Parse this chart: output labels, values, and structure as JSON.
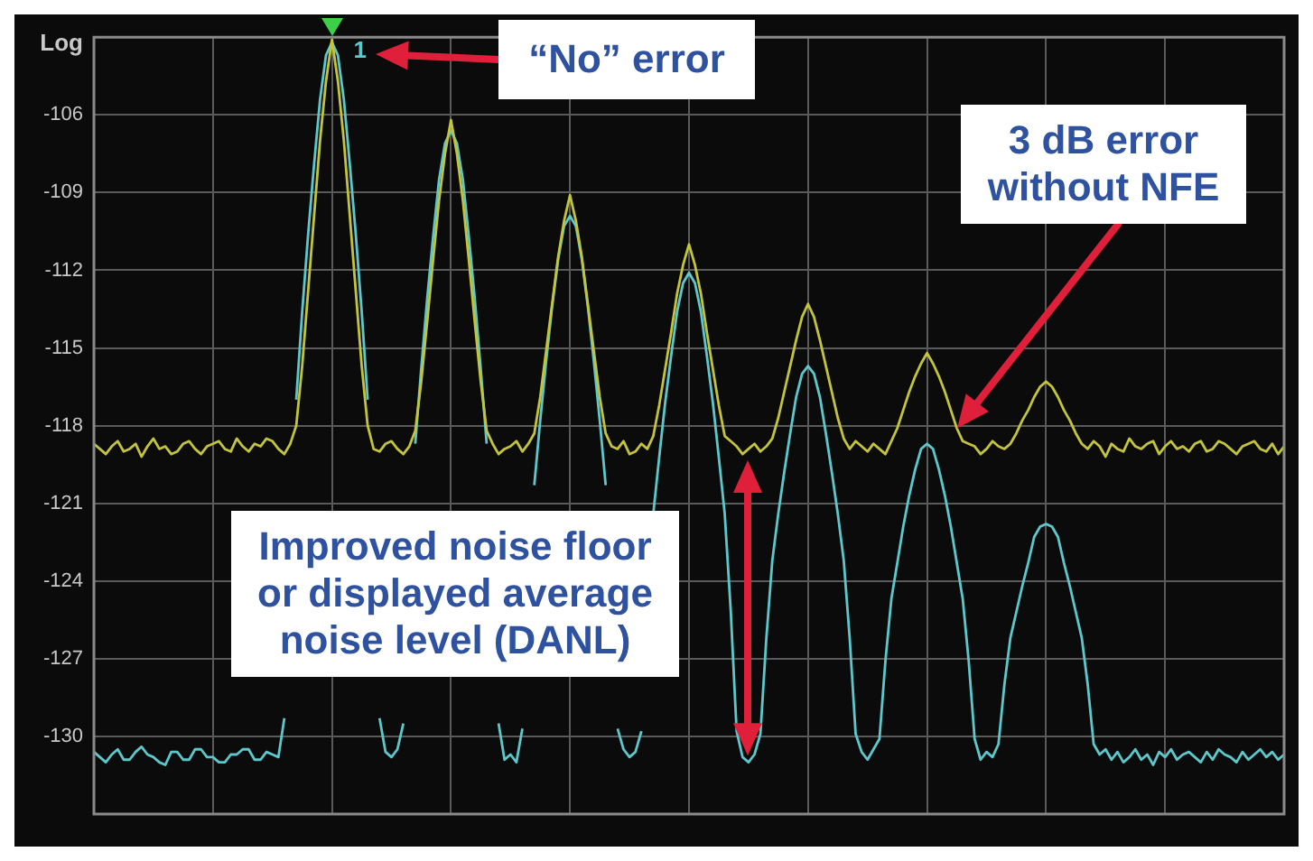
{
  "chart_data": {
    "type": "line",
    "ylabel": "Log",
    "categories": [
      null,
      null,
      null,
      null,
      null,
      null,
      null,
      null,
      null,
      null,
      null,
      null,
      null,
      null,
      null,
      null,
      null,
      null,
      null,
      null,
      null,
      null,
      null,
      null,
      null,
      null,
      null,
      null,
      null,
      null,
      null,
      null,
      null,
      null,
      null,
      null,
      null,
      null,
      null,
      null,
      null,
      null,
      null,
      null,
      null,
      null,
      null,
      null,
      null,
      null,
      null,
      null,
      null,
      null,
      null,
      null,
      null,
      null,
      null,
      null,
      null,
      null,
      null,
      null,
      null,
      null,
      null,
      null,
      null,
      null,
      null,
      null,
      null,
      null,
      null,
      null,
      null,
      null,
      null,
      null,
      null,
      null,
      null,
      null,
      null,
      null,
      null,
      null,
      null,
      null,
      null,
      null,
      null,
      null,
      null,
      null,
      null,
      null,
      null,
      null,
      null,
      null,
      null,
      null,
      null,
      null,
      null,
      null,
      null,
      null,
      null,
      null,
      null,
      null,
      null,
      null,
      null,
      null,
      null,
      null,
      null,
      null,
      null,
      null,
      null,
      null,
      null,
      null,
      null,
      null,
      null,
      null,
      null,
      null,
      null,
      null,
      null,
      null,
      null,
      null,
      null,
      null,
      null,
      null,
      null,
      null,
      null,
      null,
      null,
      null,
      null,
      null,
      null,
      null,
      null,
      null,
      null,
      null,
      null,
      null,
      null,
      null,
      null,
      null,
      null,
      null,
      null,
      null,
      null,
      null,
      null,
      null,
      null,
      null,
      null,
      null,
      null,
      null,
      null,
      null,
      null,
      null,
      null,
      null,
      null,
      null,
      null,
      null,
      null,
      null,
      null,
      null,
      null,
      null,
      null,
      null,
      null,
      null,
      null,
      null,
      null
    ],
    "ylim": [
      -133,
      -103
    ],
    "yticks": [
      {
        "value": -103,
        "label": null
      },
      -106,
      -109,
      -112,
      -115,
      -118,
      -121,
      -124,
      -127,
      -130,
      {
        "value": -133,
        "label": null
      }
    ],
    "tick_labels": "y",
    "grid": true,
    "legend": false,
    "marker": "none",
    "series": [
      {
        "color": "#c4c43c",
        "values": [
          -118.7,
          -118.9,
          -119.1,
          -118.8,
          -118.6,
          -119.0,
          -118.9,
          -118.7,
          -119.2,
          -118.8,
          -118.5,
          -118.9,
          -118.8,
          -119.1,
          -119.0,
          -118.7,
          -118.6,
          -118.9,
          -119.1,
          -118.8,
          -118.7,
          -118.6,
          -118.9,
          -119.0,
          -118.5,
          -118.8,
          -119.0,
          -118.7,
          -118.8,
          -118.5,
          -118.6,
          -118.9,
          -119.1,
          -118.7,
          -118.0,
          -115.7,
          -112.8,
          -109.9,
          -107.0,
          -104.7,
          -103.1,
          -104.7,
          -107.0,
          -109.9,
          -112.8,
          -115.7,
          -118.0,
          -118.9,
          -119.0,
          -118.7,
          -118.6,
          -118.9,
          -119.1,
          -118.8,
          -118.2,
          -116.3,
          -114.0,
          -111.6,
          -109.3,
          -107.5,
          -106.2,
          -107.5,
          -109.3,
          -111.6,
          -114.0,
          -116.3,
          -118.2,
          -118.7,
          -119.1,
          -118.9,
          -118.8,
          -118.6,
          -119.0,
          -118.7,
          -118.3,
          -116.9,
          -115.1,
          -113.3,
          -111.5,
          -110.1,
          -109.1,
          -110.1,
          -111.5,
          -113.3,
          -115.1,
          -116.9,
          -118.3,
          -118.8,
          -118.9,
          -118.6,
          -119.1,
          -119.0,
          -118.7,
          -118.9,
          -118.4,
          -117.2,
          -115.8,
          -114.4,
          -112.9,
          -111.8,
          -111.0,
          -111.8,
          -112.9,
          -114.4,
          -115.8,
          -117.2,
          -118.4,
          -118.6,
          -118.8,
          -119.1,
          -118.9,
          -118.7,
          -119.0,
          -118.8,
          -118.5,
          -117.7,
          -116.7,
          -115.7,
          -114.7,
          -113.8,
          -113.3,
          -113.8,
          -114.7,
          -115.7,
          -116.7,
          -117.7,
          -118.5,
          -118.9,
          -118.6,
          -118.8,
          -119.0,
          -118.7,
          -118.9,
          -119.1,
          -118.6,
          -118.1,
          -117.4,
          -116.7,
          -116.1,
          -115.6,
          -115.2,
          -115.6,
          -116.1,
          -116.7,
          -117.4,
          -118.1,
          -118.6,
          -118.7,
          -118.8,
          -119.1,
          -118.9,
          -118.6,
          -118.8,
          -118.9,
          -118.7,
          -118.3,
          -117.8,
          -117.4,
          -116.9,
          -116.5,
          -116.3,
          -116.5,
          -116.9,
          -117.4,
          -117.8,
          -118.3,
          -118.7,
          -118.9,
          -118.6,
          -118.8,
          -119.2,
          -118.7,
          -118.9,
          -119.0,
          -118.5,
          -118.8,
          -118.9,
          -118.7,
          -118.6,
          -119.1,
          -118.8,
          -118.6,
          -118.9,
          -118.8,
          -119.0,
          -118.7,
          -118.6,
          -119.0,
          -118.9,
          -118.6,
          -118.7,
          -118.9,
          -119.1,
          -118.8,
          -118.7,
          -118.6,
          -118.9,
          -119.0,
          -118.7,
          -119.1,
          -118.8
        ]
      },
      {
        "color": "#5cc8cc",
        "values": [
          -130.6,
          -130.8,
          -131.0,
          -130.7,
          -130.5,
          -130.9,
          -130.9,
          -130.6,
          -130.4,
          -130.7,
          -130.8,
          -131.0,
          -131.1,
          -130.6,
          -130.6,
          -130.9,
          -130.9,
          -130.5,
          -130.5,
          -130.8,
          -130.8,
          -131.0,
          -131.0,
          -130.7,
          -130.7,
          -130.5,
          -130.5,
          -130.9,
          -130.9,
          -130.6,
          -130.7,
          -130.8,
          -129.3,
          null,
          -117.0,
          -113.6,
          -110.6,
          -107.9,
          -105.4,
          -103.7,
          -103.2,
          -103.7,
          -105.4,
          -107.9,
          -110.6,
          -113.6,
          -117.0,
          null,
          -129.3,
          -130.6,
          -130.8,
          -130.5,
          -129.5,
          null,
          -118.7,
          -115.8,
          -113.1,
          -110.7,
          -108.5,
          -107.1,
          -106.6,
          -107.1,
          -108.5,
          -110.7,
          -113.1,
          -115.8,
          -118.7,
          null,
          -129.5,
          -130.9,
          -130.7,
          -131.0,
          -129.7,
          null,
          -120.3,
          -117.8,
          -115.5,
          -113.4,
          -111.6,
          -110.3,
          -109.9,
          -110.3,
          -111.6,
          -113.4,
          -115.5,
          -117.8,
          -120.3,
          null,
          -129.7,
          -130.5,
          -130.8,
          -130.6,
          -129.8,
          null,
          -121.4,
          -119.2,
          -117.1,
          -115.3,
          -113.6,
          -112.5,
          -112.1,
          -112.5,
          -113.6,
          -115.3,
          -117.1,
          -119.2,
          -121.4,
          -125.1,
          -129.8,
          -130.8,
          -131.0,
          -130.7,
          -129.9,
          -126.2,
          -123.2,
          -121.4,
          -119.8,
          -118.3,
          -116.9,
          -116.0,
          -115.7,
          -116.0,
          -116.9,
          -118.3,
          -119.8,
          -121.4,
          -123.2,
          -126.2,
          -129.9,
          -130.6,
          -130.9,
          -130.5,
          -130.1,
          -127.1,
          -124.7,
          -123.3,
          -121.9,
          -120.7,
          -119.7,
          -118.9,
          -118.7,
          -118.9,
          -119.7,
          -120.7,
          -121.9,
          -123.3,
          -124.7,
          -127.1,
          -130.1,
          -130.9,
          -130.6,
          -130.8,
          -130.3,
          -128.0,
          -126.2,
          -125.2,
          -124.2,
          -123.3,
          -122.3,
          -121.9,
          -121.8,
          -121.9,
          -122.3,
          -123.3,
          -124.2,
          -125.2,
          -126.2,
          -128.0,
          -130.3,
          -130.7,
          -130.5,
          -130.9,
          -130.6,
          -131.0,
          -130.8,
          -130.5,
          -130.9,
          -130.7,
          -131.1,
          -130.6,
          -130.8,
          -130.5,
          -130.9,
          -130.7,
          -130.6,
          -130.8,
          -131.0,
          -130.6,
          -130.9,
          -130.5,
          -130.7,
          -130.8,
          -131.0,
          -130.6,
          -130.9,
          -130.7,
          -130.5,
          -130.8,
          -130.6,
          -130.9,
          -130.7
        ]
      }
    ],
    "annotations": [
      "1",
      "“No” error",
      "3 dB error without NFE",
      "Improved noise floor or displayed average noise level (DANL)"
    ]
  }
}
